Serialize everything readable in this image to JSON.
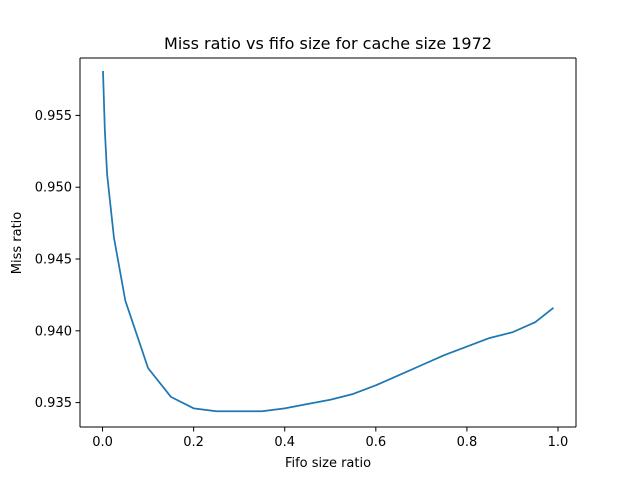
{
  "chart_data": {
    "type": "line",
    "title": "Miss ratio vs fifo size for cache size 1972",
    "xlabel": "Fifo size ratio",
    "ylabel": "Miss ratio",
    "xlim": [
      -0.0495,
      1.0395
    ],
    "ylim": [
      0.9333,
      0.959
    ],
    "x_ticks": [
      0.0,
      0.2,
      0.4,
      0.6,
      0.8,
      1.0
    ],
    "x_tick_labels": [
      "0.0",
      "0.2",
      "0.4",
      "0.6",
      "0.8",
      "1.0"
    ],
    "y_ticks": [
      0.935,
      0.94,
      0.945,
      0.95,
      0.955
    ],
    "y_tick_labels": [
      "0.935",
      "0.940",
      "0.945",
      "0.950",
      "0.955"
    ],
    "grid": false,
    "line_color": "#1f77b4",
    "series": [
      {
        "x": [
          0.001,
          0.005,
          0.01,
          0.025,
          0.05,
          0.1,
          0.15,
          0.2,
          0.25,
          0.3,
          0.35,
          0.4,
          0.45,
          0.5,
          0.55,
          0.6,
          0.65,
          0.7,
          0.75,
          0.8,
          0.85,
          0.9,
          0.95,
          0.99
        ],
        "values": [
          0.9581,
          0.954,
          0.9509,
          0.9465,
          0.9421,
          0.9374,
          0.9354,
          0.9346,
          0.9344,
          0.9344,
          0.9344,
          0.9346,
          0.9349,
          0.9352,
          0.9356,
          0.9362,
          0.9369,
          0.9376,
          0.9383,
          0.9389,
          0.9395,
          0.9399,
          0.9406,
          0.9416
        ]
      }
    ]
  }
}
